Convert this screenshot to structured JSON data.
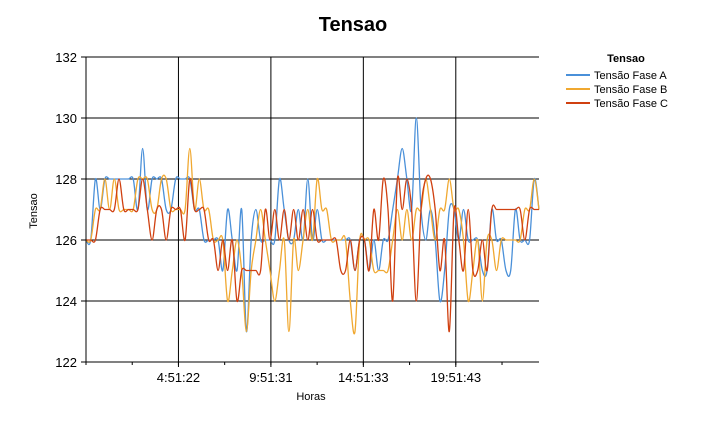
{
  "chart_data": {
    "type": "line",
    "title": "Tensao",
    "xlabel": "Horas",
    "ylabel": "Tensao",
    "x_ticks": [
      "4:51:22",
      "9:51:31",
      "14:51:33",
      "19:51:43"
    ],
    "ylim": [
      122,
      132
    ],
    "y_ticks": [
      122,
      124,
      126,
      128,
      130,
      132
    ],
    "grid": true,
    "legend": {
      "title": "Tensao",
      "position": "top-right"
    },
    "x": [
      0,
      1,
      2,
      3,
      4,
      5,
      6,
      7,
      8,
      9,
      10,
      11,
      12,
      13,
      14,
      15,
      16,
      17,
      18,
      19,
      20,
      21,
      22,
      23,
      24,
      25,
      26,
      27,
      28,
      29,
      30,
      31,
      32,
      33,
      34,
      35,
      36,
      37,
      38,
      39,
      40,
      41,
      42,
      43,
      44,
      45,
      46,
      47,
      48,
      49,
      50,
      51,
      52,
      53,
      54,
      55,
      56,
      57,
      58,
      59,
      60,
      61,
      62,
      63,
      64,
      65,
      66,
      67,
      68,
      69,
      70,
      71,
      72,
      73,
      74,
      75,
      76,
      77,
      78,
      79,
      80,
      81,
      82,
      83,
      84,
      85,
      86,
      87,
      88,
      89,
      90,
      91,
      92,
      93,
      94,
      95,
      96
    ],
    "series": [
      {
        "name": "Tensão Fase A",
        "color": "#4a90d9",
        "values": [
          126,
          126,
          128,
          127,
          128,
          128,
          128,
          128,
          128,
          128,
          128,
          127,
          129,
          127,
          128,
          128,
          128,
          127,
          127,
          128,
          128,
          128,
          128,
          127,
          127,
          126,
          126,
          126,
          126,
          125,
          127,
          126,
          125,
          127,
          123,
          126,
          127,
          126,
          126,
          126,
          126,
          128,
          127,
          126,
          126,
          127,
          126,
          128,
          126,
          127,
          126,
          126,
          126,
          126,
          126,
          126,
          126,
          125,
          126,
          126,
          125,
          126,
          125,
          126,
          126,
          127,
          128,
          129,
          128,
          127,
          130,
          127,
          126,
          127,
          126,
          124,
          125,
          127,
          127,
          126,
          127,
          126,
          126,
          126,
          125,
          125,
          127,
          126,
          126,
          125,
          125,
          127,
          126,
          126,
          126,
          128,
          127
        ]
      },
      {
        "name": "Tensão Fase B",
        "color": "#f0a830",
        "values": [
          126,
          126,
          127,
          127,
          128,
          127,
          128,
          127,
          127,
          127,
          127,
          128,
          128,
          128,
          127,
          127,
          128,
          128,
          127,
          127,
          127,
          127,
          129,
          127,
          128,
          127,
          127,
          126,
          126,
          126,
          124,
          125,
          126,
          125,
          123,
          125,
          126,
          127,
          126,
          125,
          124,
          125,
          126,
          123,
          126,
          125,
          126,
          127,
          126,
          128,
          127,
          127,
          126,
          126,
          126,
          126,
          124,
          123,
          126,
          126,
          126,
          125,
          125,
          125,
          125,
          126,
          127,
          126,
          127,
          126,
          127,
          127,
          128,
          127,
          126,
          127,
          127,
          128,
          127,
          127,
          126,
          124,
          125,
          126,
          124,
          126,
          126,
          125,
          126,
          126,
          126,
          126,
          126,
          127,
          127,
          128,
          127
        ]
      },
      {
        "name": "Tensão Fase C",
        "color": "#d04010",
        "values": [
          126,
          126,
          126,
          127,
          127,
          127,
          127,
          128,
          127,
          127,
          127,
          127,
          128,
          127,
          126,
          127,
          127,
          126,
          127,
          127,
          127,
          126,
          128,
          127,
          127,
          127,
          126,
          126,
          125,
          126,
          125,
          126,
          124,
          125,
          125,
          125,
          125,
          125,
          127,
          126,
          127,
          126,
          127,
          126,
          127,
          126,
          127,
          126,
          127,
          126,
          126,
          126,
          126,
          126,
          125,
          125,
          126,
          125,
          126,
          126,
          125,
          127,
          126,
          128,
          127,
          124,
          128,
          127,
          128,
          127,
          124,
          127,
          128,
          128,
          127,
          125,
          126,
          123,
          127,
          126,
          125,
          127,
          125,
          125,
          126,
          125,
          127,
          127,
          127,
          127,
          127,
          127,
          127,
          126,
          127,
          127,
          127
        ]
      }
    ]
  }
}
